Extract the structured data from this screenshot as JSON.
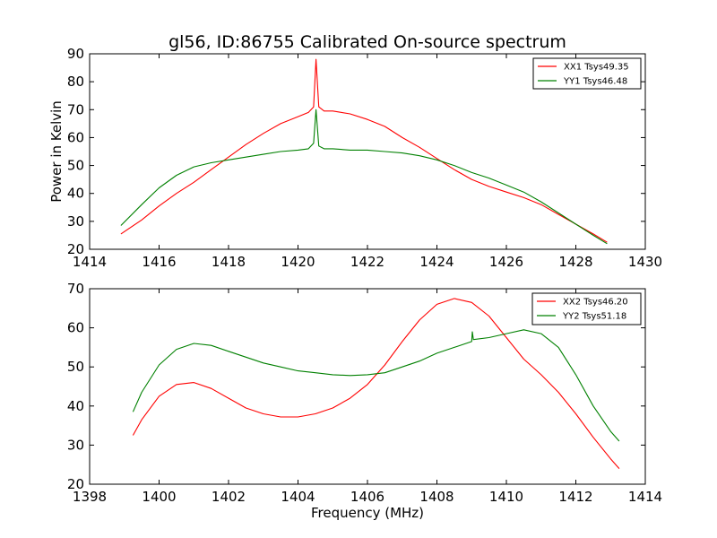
{
  "figure": {
    "title": "gl56, ID:86755 Calibrated On-source spectrum",
    "ylabel": "Power in Kelvin",
    "xlabel": "Frequency (MHz)"
  },
  "chart_data": [
    {
      "type": "line",
      "xlim": [
        1414,
        1430
      ],
      "ylim": [
        20,
        90
      ],
      "xticks": [
        1414,
        1416,
        1418,
        1420,
        1422,
        1424,
        1426,
        1428,
        1430
      ],
      "yticks": [
        20,
        30,
        40,
        50,
        60,
        70,
        80,
        90
      ],
      "legend_placement": "top-right",
      "series": [
        {
          "name": "XX1 Tsys49.35",
          "color": "#ff0000",
          "x": [
            1414.9,
            1415.5,
            1416.0,
            1416.5,
            1417.0,
            1417.5,
            1418.0,
            1418.5,
            1419.0,
            1419.5,
            1420.0,
            1420.3,
            1420.45,
            1420.52,
            1420.6,
            1420.75,
            1421.0,
            1421.5,
            1422.0,
            1422.5,
            1423.0,
            1423.5,
            1424.0,
            1424.5,
            1425.0,
            1425.5,
            1426.0,
            1426.5,
            1427.0,
            1427.5,
            1428.0,
            1428.5,
            1428.9
          ],
          "y": [
            25.5,
            30.5,
            35.5,
            40.0,
            44.0,
            48.5,
            53.0,
            57.5,
            61.5,
            65.0,
            67.5,
            69.0,
            71.0,
            88.0,
            71.0,
            69.5,
            69.5,
            68.5,
            66.5,
            64.0,
            60.0,
            56.5,
            52.5,
            48.5,
            45.0,
            42.5,
            40.5,
            38.5,
            36.0,
            32.5,
            29.0,
            25.5,
            22.5
          ]
        },
        {
          "name": "YY1 Tsys46.48",
          "color": "#008000",
          "x": [
            1414.9,
            1415.5,
            1416.0,
            1416.5,
            1417.0,
            1417.5,
            1418.0,
            1418.5,
            1419.0,
            1419.5,
            1420.0,
            1420.3,
            1420.45,
            1420.52,
            1420.6,
            1420.75,
            1421.0,
            1421.5,
            1422.0,
            1422.5,
            1423.0,
            1423.5,
            1424.0,
            1424.5,
            1425.0,
            1425.5,
            1426.0,
            1426.5,
            1427.0,
            1427.5,
            1428.0,
            1428.5,
            1428.9
          ],
          "y": [
            28.5,
            36.0,
            42.0,
            46.5,
            49.5,
            51.0,
            52.0,
            53.0,
            54.0,
            55.0,
            55.5,
            56.0,
            58.0,
            70.0,
            57.0,
            56.0,
            56.0,
            55.5,
            55.5,
            55.0,
            54.5,
            53.5,
            52.0,
            50.0,
            47.5,
            45.5,
            43.0,
            40.5,
            37.0,
            33.0,
            29.0,
            25.0,
            22.0
          ]
        }
      ]
    },
    {
      "type": "line",
      "xlim": [
        1398,
        1414
      ],
      "ylim": [
        20,
        70
      ],
      "xticks": [
        1398,
        1400,
        1402,
        1404,
        1406,
        1408,
        1410,
        1412,
        1414
      ],
      "yticks": [
        20,
        30,
        40,
        50,
        60,
        70
      ],
      "legend_placement": "top-right",
      "series": [
        {
          "name": "XX2 Tsys46.20",
          "color": "#ff0000",
          "x": [
            1399.25,
            1399.5,
            1400.0,
            1400.5,
            1401.0,
            1401.5,
            1402.0,
            1402.5,
            1403.0,
            1403.5,
            1404.0,
            1404.5,
            1405.0,
            1405.5,
            1406.0,
            1406.5,
            1407.0,
            1407.5,
            1408.0,
            1408.5,
            1409.0,
            1409.5,
            1410.0,
            1410.5,
            1411.0,
            1411.5,
            1412.0,
            1412.5,
            1413.0,
            1413.25
          ],
          "y": [
            32.5,
            36.5,
            42.5,
            45.5,
            46.0,
            44.5,
            42.0,
            39.5,
            38.0,
            37.2,
            37.2,
            38.0,
            39.5,
            42.0,
            45.5,
            50.5,
            56.5,
            62.0,
            66.0,
            67.5,
            66.5,
            63.0,
            57.5,
            52.0,
            48.0,
            43.5,
            38.0,
            32.0,
            26.5,
            24.0
          ]
        },
        {
          "name": "YY2 Tsys51.18",
          "color": "#008000",
          "x": [
            1399.25,
            1399.5,
            1400.0,
            1400.5,
            1401.0,
            1401.5,
            1402.0,
            1402.5,
            1403.0,
            1403.5,
            1404.0,
            1404.5,
            1405.0,
            1405.5,
            1406.0,
            1406.5,
            1407.0,
            1407.5,
            1408.0,
            1408.5,
            1409.0,
            1409.02,
            1409.05,
            1409.5,
            1410.0,
            1410.5,
            1411.0,
            1411.5,
            1412.0,
            1412.5,
            1413.0,
            1413.25
          ],
          "y": [
            38.5,
            43.5,
            50.5,
            54.5,
            56.0,
            55.5,
            54.0,
            52.5,
            51.0,
            50.0,
            49.0,
            48.5,
            48.0,
            47.8,
            48.0,
            48.5,
            50.0,
            51.5,
            53.5,
            55.0,
            56.5,
            59.0,
            57.0,
            57.5,
            58.5,
            59.5,
            58.5,
            55.0,
            48.0,
            40.0,
            33.5,
            31.0
          ]
        }
      ]
    }
  ]
}
